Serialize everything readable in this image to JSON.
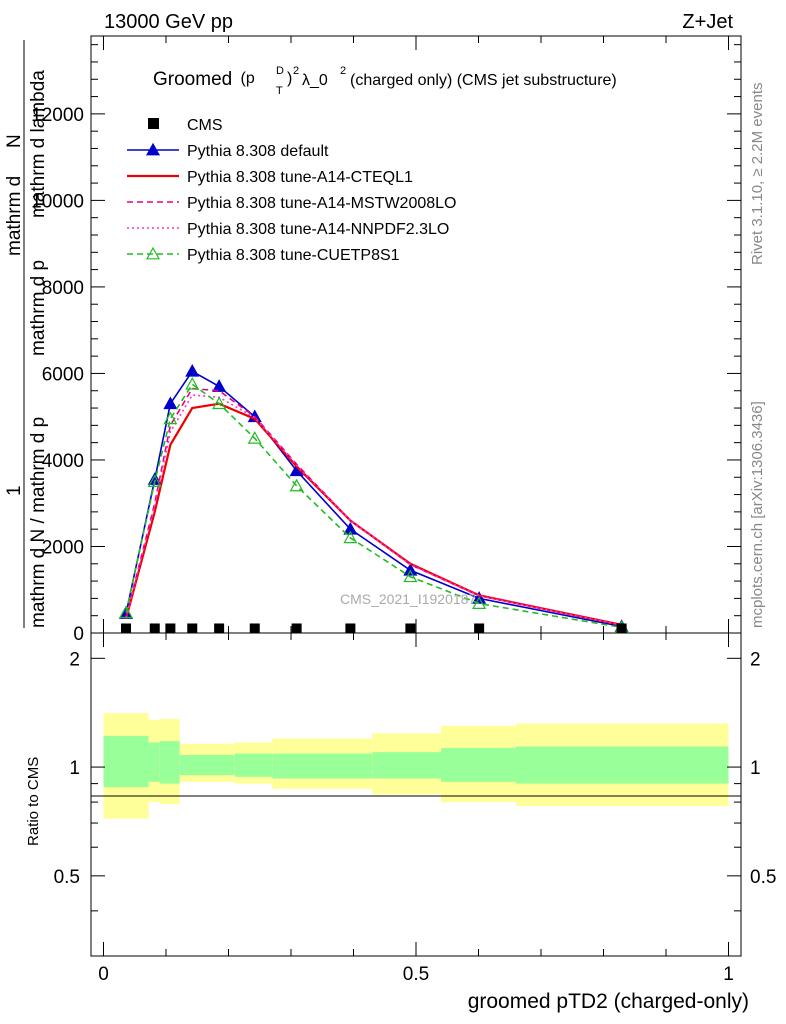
{
  "header": {
    "left": "13000 GeV pp",
    "right": "Z+Jet"
  },
  "side_labels": {
    "top": "Rivet 3.1.10, ≥ 2.2M events",
    "bottom": "mcplots.cern.ch [arXiv:1306.3436]"
  },
  "watermark": "CMS_2021_I1920187",
  "main_title": {
    "prefix": "Groomed",
    "math": "(p",
    "rest": "λ_0",
    "suffix": " (charged only) (CMS jet substructure)"
  },
  "y_label": {
    "numerator_1": "1",
    "denominator_1": "mathrm d N / mathrm d p",
    "numerator_2": "mathrm d",
    "numerator_2b": "N",
    "denominator_2": "mathrm d p",
    "denominator_2b": "mathrm d lambda"
  },
  "ratio_ylabel": "Ratio to CMS",
  "x_label": "groomed pTD2 (charged-only)",
  "colors": {
    "default": "#0000cc",
    "a14cteq": "#ee0000",
    "mstw": "#e6007a",
    "nnpdf": "#ff33cc",
    "cuetp": "#22bb22",
    "band_inner": "#99ff99",
    "band_outer": "#ffff99"
  },
  "chart_data": {
    "type": "line",
    "xlim": [
      -0.02,
      1.02
    ],
    "ylim": [
      0,
      13800
    ],
    "ratio_ylim": [
      0.3,
      2.35
    ],
    "x_ticks": [
      0,
      0.5,
      1
    ],
    "x_tick_labels": [
      "0",
      "0.5",
      "1"
    ],
    "y_ticks": [
      0,
      2000,
      4000,
      6000,
      8000,
      10000,
      12000
    ],
    "y_tick_labels": [
      "0",
      "2000",
      "4000",
      "6000",
      "8000",
      "10000",
      "12000"
    ],
    "ratio_ticks": [
      0.5,
      1,
      2
    ],
    "ratio_tick_labels": [
      "0.5",
      "1",
      "2"
    ],
    "x": [
      0.036,
      0.082,
      0.107,
      0.142,
      0.185,
      0.242,
      0.309,
      0.395,
      0.491,
      0.601,
      0.829
    ],
    "cms": [
      12,
      12,
      12,
      12,
      12,
      12,
      12,
      12,
      12,
      12,
      12
    ],
    "series": [
      {
        "key": "default",
        "name": "Pythia 8.308 default",
        "style": "solid",
        "marker": "triangle-filled",
        "values": [
          450,
          3550,
          5300,
          6050,
          5700,
          5000,
          3750,
          2400,
          1450,
          800,
          150
        ]
      },
      {
        "key": "a14cteq",
        "name": "Pythia 8.308 tune-A14-CTEQL1",
        "style": "solid",
        "marker": "none",
        "values": [
          330,
          2800,
          4350,
          5200,
          5300,
          4950,
          3850,
          2600,
          1600,
          870,
          190
        ]
      },
      {
        "key": "mstw",
        "name": "Pythia 8.308 tune-A14-MSTW2008LO",
        "style": "dashed",
        "marker": "none",
        "values": [
          360,
          3000,
          4800,
          5650,
          5600,
          5000,
          3900,
          2600,
          1580,
          860,
          180
        ]
      },
      {
        "key": "nnpdf",
        "name": "Pythia 8.308 tune-A14-NNPDF2.3LO",
        "style": "dotted",
        "marker": "none",
        "values": [
          350,
          2950,
          4650,
          5500,
          5450,
          4980,
          3880,
          2600,
          1580,
          860,
          180
        ]
      },
      {
        "key": "cuetp",
        "name": "Pythia 8.308 tune-CUETP8S1",
        "style": "dashed",
        "marker": "triangle-open",
        "values": [
          470,
          3500,
          4950,
          5750,
          5300,
          4500,
          3400,
          2200,
          1300,
          680,
          130
        ]
      }
    ],
    "legend": [
      "CMS",
      "Pythia 8.308 default",
      "Pythia 8.308 tune-A14-CTEQL1",
      "Pythia 8.308 tune-A14-MSTW2008LO",
      "Pythia 8.308 tune-A14-NNPDF2.3LO",
      "Pythia 8.308 tune-CUETP8S1"
    ],
    "legend_position": "top-left",
    "ratio_bands": [
      {
        "x0": 0.0,
        "x1": 0.072,
        "inner": [
          0.88,
          1.22
        ],
        "outer": [
          0.72,
          1.41
        ]
      },
      {
        "x0": 0.072,
        "x1": 0.09,
        "inner": [
          0.91,
          1.17
        ],
        "outer": [
          0.8,
          1.35
        ]
      },
      {
        "x0": 0.09,
        "x1": 0.122,
        "inner": [
          0.9,
          1.18
        ],
        "outer": [
          0.79,
          1.36
        ]
      },
      {
        "x0": 0.122,
        "x1": 0.21,
        "inner": [
          0.95,
          1.08
        ],
        "outer": [
          0.91,
          1.16
        ]
      },
      {
        "x0": 0.21,
        "x1": 0.27,
        "inner": [
          0.94,
          1.09
        ],
        "outer": [
          0.9,
          1.17
        ]
      },
      {
        "x0": 0.27,
        "x1": 0.43,
        "inner": [
          0.93,
          1.09
        ],
        "outer": [
          0.87,
          1.2
        ]
      },
      {
        "x0": 0.43,
        "x1": 0.54,
        "inner": [
          0.93,
          1.1
        ],
        "outer": [
          0.84,
          1.24
        ]
      },
      {
        "x0": 0.54,
        "x1": 0.66,
        "inner": [
          0.91,
          1.13
        ],
        "outer": [
          0.8,
          1.3
        ]
      },
      {
        "x0": 0.66,
        "x1": 1.0,
        "inner": [
          0.9,
          1.14
        ],
        "outer": [
          0.78,
          1.32
        ]
      }
    ]
  }
}
